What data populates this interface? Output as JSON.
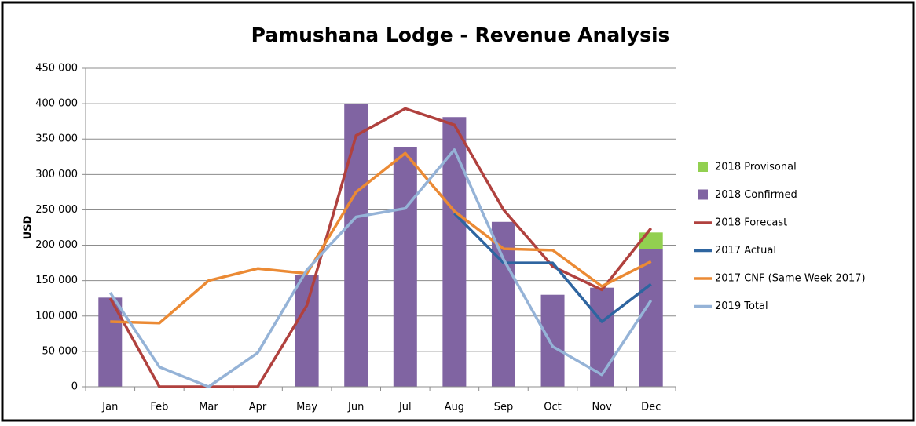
{
  "chart_data": {
    "type": "bar",
    "title": "Pamushana Lodge - Revenue Analysis",
    "y_label": "USD",
    "categories": [
      "Jan",
      "Feb",
      "Mar",
      "Apr",
      "May",
      "Jun",
      "Jul",
      "Aug",
      "Sep",
      "Oct",
      "Nov",
      "Dec"
    ],
    "ylim": [
      0,
      450000
    ],
    "yticks": [
      0,
      {
        "value": 50000,
        "label": "50 000"
      },
      {
        "value": 100000,
        "label": "100 000"
      },
      {
        "value": 150000,
        "label": "150 000"
      },
      {
        "value": 200000,
        "label": "200 000"
      },
      {
        "value": 250000,
        "label": "250 000"
      },
      {
        "value": 300000,
        "label": "300 000"
      },
      {
        "value": 350000,
        "label": "350 000"
      },
      {
        "value": 400000,
        "label": "400 000"
      },
      {
        "value": 450000,
        "label": "450 000"
      }
    ],
    "grid": true,
    "legend": "right",
    "series": [
      {
        "name": "2018 Provisonal",
        "type": "bar",
        "stack": true,
        "color": "#92d050",
        "values": [
          0,
          0,
          0,
          0,
          0,
          0,
          0,
          0,
          0,
          0,
          0,
          23000
        ]
      },
      {
        "name": "2018 Confirmed",
        "type": "bar",
        "color": "#8064a2",
        "values": [
          126000,
          0,
          0,
          0,
          158000,
          400000,
          339000,
          381000,
          233000,
          130000,
          140000,
          195000
        ]
      },
      {
        "name": "2018 Forecast",
        "type": "line",
        "color": "#b0413e",
        "values": [
          125000,
          0,
          0,
          0,
          115000,
          355000,
          393000,
          370000,
          250000,
          170000,
          137000,
          224000
        ]
      },
      {
        "name": "2017 Actual",
        "type": "line",
        "color": "#2e65a0",
        "values": [
          null,
          null,
          null,
          null,
          null,
          null,
          null,
          245000,
          175000,
          175000,
          92000,
          145000
        ]
      },
      {
        "name": "2017 CNF (Same Week 2017)",
        "type": "line",
        "color": "#eb8a34",
        "values": [
          92000,
          90000,
          150000,
          167000,
          160000,
          275000,
          330000,
          248000,
          195000,
          193000,
          142000,
          177000
        ]
      },
      {
        "name": "2019 Total",
        "type": "line",
        "color": "#95b3d7",
        "values": [
          133000,
          28000,
          0,
          48000,
          165000,
          240000,
          252000,
          335000,
          180000,
          57000,
          17000,
          122000
        ]
      }
    ]
  }
}
